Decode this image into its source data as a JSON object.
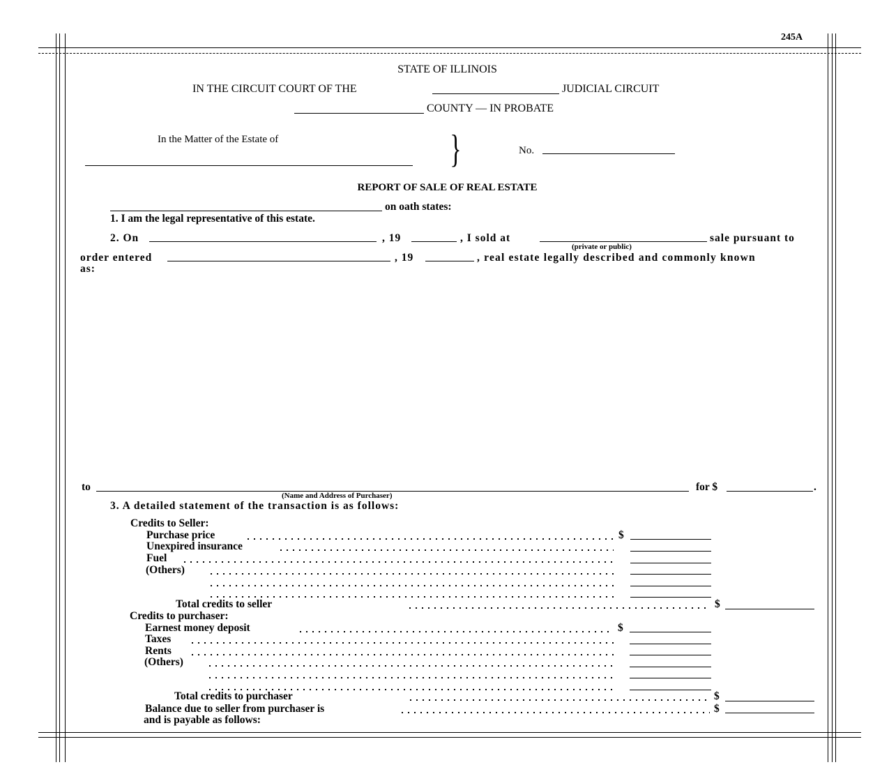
{
  "form_number": "245A",
  "header": {
    "state": "STATE OF ILLINOIS",
    "court_prefix": "IN THE CIRCUIT COURT OF THE",
    "court_suffix": "JUDICIAL CIRCUIT",
    "county": "COUNTY — IN PROBATE"
  },
  "caption": {
    "matter": "In the Matter of the Estate of",
    "brace": "}",
    "case_no": "No."
  },
  "title": "REPORT OF SALE OF REAL ESTATE",
  "body": {
    "oath": "on oath states:",
    "item1": "1.  I am the legal representative of this estate.",
    "item2_on": "2.  On",
    "comma19": ", 19",
    "sold_at": ", I sold at",
    "private_public": "(private or public)",
    "sale_pursuant": "sale pursuant to",
    "order_entered": "order entered",
    "comma19b": ", 19",
    "real_estate": ", real estate legally described and commonly known",
    "as": "as:",
    "to": "to",
    "purchaser_caption": "(Name and Address of Purchaser)",
    "for": "for $",
    "period": ".",
    "item3": "3.  A detailed statement of the transaction is as follows:"
  },
  "credits_seller": {
    "heading": "Credits to Seller:",
    "items": [
      "Purchase price",
      "Unexpired insurance",
      "Fuel",
      "(Others)"
    ],
    "total": "Total credits to seller"
  },
  "credits_purchaser": {
    "heading": "Credits to purchaser:",
    "items": [
      "Earnest money deposit",
      "Taxes",
      "Rents",
      "(Others)"
    ],
    "total": "Total credits to purchaser"
  },
  "balance": "Balance due to seller from purchaser is",
  "payable": "and is payable as follows:",
  "dollar": "$"
}
